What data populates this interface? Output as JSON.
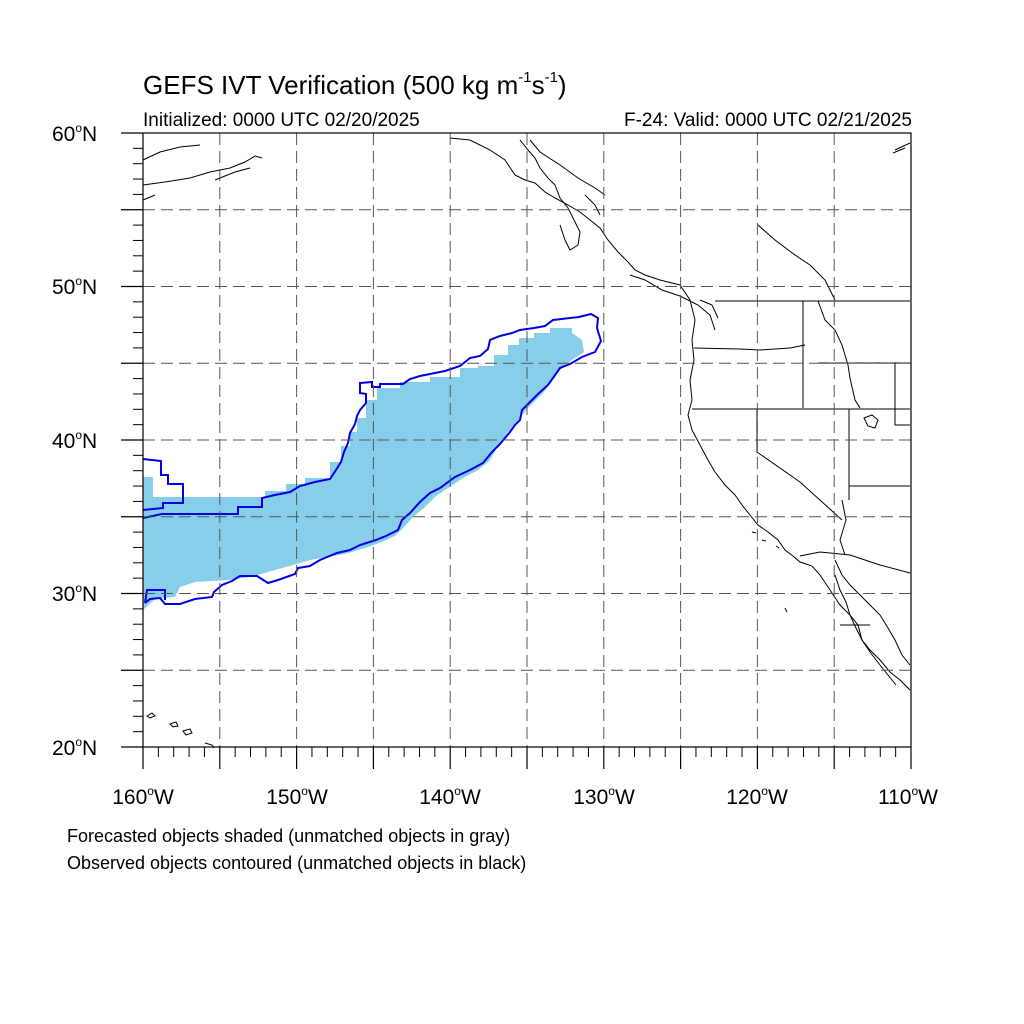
{
  "title": {
    "main": "GEFS IVT Verification (500 kg m",
    "sup1": "-1",
    "mid": "s",
    "sup2": "-1",
    "close": ")"
  },
  "subtitle_left": "Initialized: 0000 UTC 02/20/2025",
  "subtitle_right": "F-24: Valid: 0000 UTC 02/21/2025",
  "lat_labels": [
    {
      "num": "60",
      "hem": "N"
    },
    {
      "num": "50",
      "hem": "N"
    },
    {
      "num": "40",
      "hem": "N"
    },
    {
      "num": "30",
      "hem": "N"
    },
    {
      "num": "20",
      "hem": "N"
    }
  ],
  "lon_labels": [
    {
      "num": "160",
      "hem": "W"
    },
    {
      "num": "150",
      "hem": "W"
    },
    {
      "num": "140",
      "hem": "W"
    },
    {
      "num": "130",
      "hem": "W"
    },
    {
      "num": "120",
      "hem": "W"
    },
    {
      "num": "110",
      "hem": "W"
    }
  ],
  "deg": "o",
  "footnote_1": "Forecasted objects shaded (unmatched objects in gray)",
  "footnote_2": "Observed objects contoured (unmatched objects in black)",
  "colors": {
    "forecast_fill": "#87CEEB",
    "observed_contour": "#0000E6",
    "grid": "#555555",
    "coast": "#000000"
  },
  "map_extent": {
    "lon_min": -160,
    "lon_max": -110,
    "lat_min": 20,
    "lat_max": 60
  }
}
